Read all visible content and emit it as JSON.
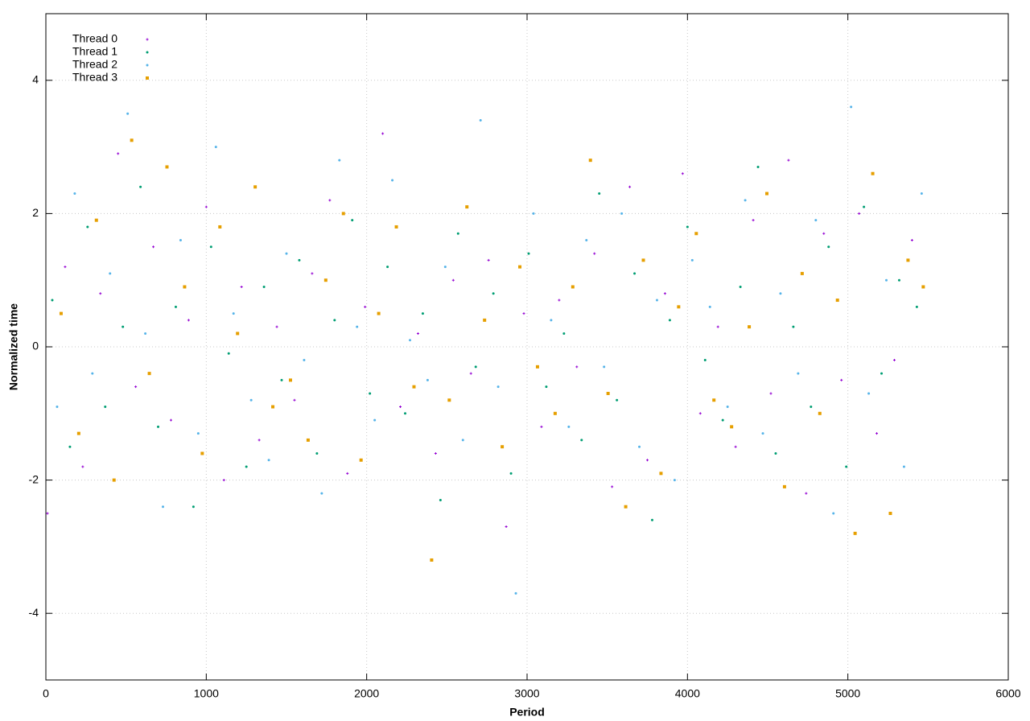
{
  "chart_data": {
    "type": "scatter",
    "xlabel": "Period",
    "ylabel": "Normalized time",
    "xlim": [
      0,
      6000
    ],
    "ylim": [
      -5,
      5
    ],
    "xticks": [
      0,
      1000,
      2000,
      3000,
      4000,
      5000,
      6000
    ],
    "yticks": [
      -4,
      -2,
      0,
      2,
      4
    ],
    "grid": true,
    "legend": "top-left",
    "series": [
      {
        "name": "Thread 0",
        "color": "#9400d3",
        "marker": "plus",
        "x": [
          10,
          120,
          230,
          340,
          450,
          560,
          670,
          780,
          890,
          1000,
          1110,
          1220,
          1330,
          1440,
          1550,
          1660,
          1770,
          1880,
          1990,
          2100,
          2210,
          2320,
          2430,
          2540,
          2650,
          2760,
          2870,
          2980,
          3090,
          3200,
          3310,
          3420,
          3530,
          3640,
          3750,
          3860,
          3970,
          4080,
          4190,
          4300,
          4410,
          4520,
          4630,
          4740,
          4850,
          4960,
          5070,
          5180,
          5290,
          5400
        ],
        "values": [
          -2.5,
          1.2,
          -1.8,
          0.8,
          2.9,
          -0.6,
          1.5,
          -1.1,
          0.4,
          2.1,
          -2.0,
          0.9,
          -1.4,
          0.3,
          -0.8,
          1.1,
          2.2,
          -1.9,
          0.6,
          3.2,
          -0.9,
          0.2,
          -1.6,
          1.0,
          -0.4,
          1.3,
          -2.7,
          0.5,
          -1.2,
          0.7,
          -0.3,
          1.4,
          -2.1,
          2.4,
          -1.7,
          0.8,
          2.6,
          -1.0,
          0.3,
          -1.5,
          1.9,
          -0.7,
          2.8,
          -2.2,
          1.7,
          -0.5,
          2.0,
          -1.3,
          -0.2,
          1.6
        ]
      },
      {
        "name": "Thread 1",
        "color": "#009e73",
        "marker": "dot",
        "x": [
          40,
          150,
          260,
          370,
          480,
          590,
          700,
          810,
          920,
          1030,
          1140,
          1250,
          1360,
          1470,
          1580,
          1690,
          1800,
          1910,
          2020,
          2130,
          2240,
          2350,
          2460,
          2570,
          2680,
          2790,
          2900,
          3010,
          3120,
          3230,
          3340,
          3450,
          3560,
          3670,
          3780,
          3890,
          4000,
          4110,
          4220,
          4330,
          4440,
          4550,
          4660,
          4770,
          4880,
          4990,
          5100,
          5210,
          5320,
          5430
        ],
        "values": [
          0.7,
          -1.5,
          1.8,
          -0.9,
          0.3,
          2.4,
          -1.2,
          0.6,
          -2.4,
          1.5,
          -0.1,
          -1.8,
          0.9,
          -0.5,
          1.3,
          -1.6,
          0.4,
          1.9,
          -0.7,
          1.2,
          -1.0,
          0.5,
          -2.3,
          1.7,
          -0.3,
          0.8,
          -1.9,
          1.4,
          -0.6,
          0.2,
          -1.4,
          2.3,
          -0.8,
          1.1,
          -2.6,
          0.4,
          1.8,
          -0.2,
          -1.1,
          0.9,
          2.7,
          -1.6,
          0.3,
          -0.9,
          1.5,
          -1.8,
          2.1,
          -0.4,
          1.0,
          0.6
        ]
      },
      {
        "name": "Thread 2",
        "color": "#56b4e9",
        "marker": "dot",
        "x": [
          70,
          180,
          290,
          400,
          510,
          620,
          730,
          840,
          950,
          1060,
          1170,
          1280,
          1390,
          1500,
          1610,
          1720,
          1830,
          1940,
          2050,
          2160,
          2270,
          2380,
          2490,
          2600,
          2710,
          2820,
          2930,
          3040,
          3150,
          3260,
          3370,
          3480,
          3590,
          3700,
          3810,
          3920,
          4030,
          4140,
          4250,
          4360,
          4470,
          4580,
          4690,
          4800,
          4910,
          5020,
          5130,
          5240,
          5350,
          5460
        ],
        "values": [
          -0.9,
          2.3,
          -0.4,
          1.1,
          3.5,
          0.2,
          -2.4,
          1.6,
          -1.3,
          3.0,
          0.5,
          -0.8,
          -1.7,
          1.4,
          -0.2,
          -2.2,
          2.8,
          0.3,
          -1.1,
          2.5,
          0.1,
          -0.5,
          1.2,
          -1.4,
          3.4,
          -0.6,
          -3.7,
          2.0,
          0.4,
          -1.2,
          1.6,
          -0.3,
          2.0,
          -1.5,
          0.7,
          -2.0,
          1.3,
          0.6,
          -0.9,
          2.2,
          -1.3,
          0.8,
          -0.4,
          1.9,
          -2.5,
          3.6,
          -0.7,
          1.0,
          -1.8,
          2.3
        ]
      },
      {
        "name": "Thread 3",
        "color": "#e69f00",
        "marker": "square",
        "x": [
          95,
          205,
          315,
          425,
          535,
          645,
          755,
          865,
          975,
          1085,
          1195,
          1305,
          1415,
          1525,
          1635,
          1745,
          1855,
          1965,
          2075,
          2185,
          2295,
          2405,
          2515,
          2625,
          2735,
          2845,
          2955,
          3065,
          3175,
          3285,
          3395,
          3505,
          3615,
          3725,
          3835,
          3945,
          4055,
          4165,
          4275,
          4385,
          4495,
          4605,
          4715,
          4825,
          4935,
          5045,
          5155,
          5265,
          5375,
          5470
        ],
        "values": [
          0.5,
          -1.3,
          1.9,
          -2.0,
          3.1,
          -0.4,
          2.7,
          0.9,
          -1.6,
          1.8,
          0.2,
          2.4,
          -0.9,
          -0.5,
          -1.4,
          1.0,
          2.0,
          -1.7,
          0.5,
          1.8,
          -0.6,
          -3.2,
          -0.8,
          2.1,
          0.4,
          -1.5,
          1.2,
          -0.3,
          -1.0,
          0.9,
          2.8,
          -0.7,
          -2.4,
          1.3,
          -1.9,
          0.6,
          1.7,
          -0.8,
          -1.2,
          0.3,
          2.3,
          -2.1,
          1.1,
          -1.0,
          0.7,
          -2.8,
          2.6,
          -2.5,
          1.3,
          0.9
        ]
      }
    ]
  }
}
